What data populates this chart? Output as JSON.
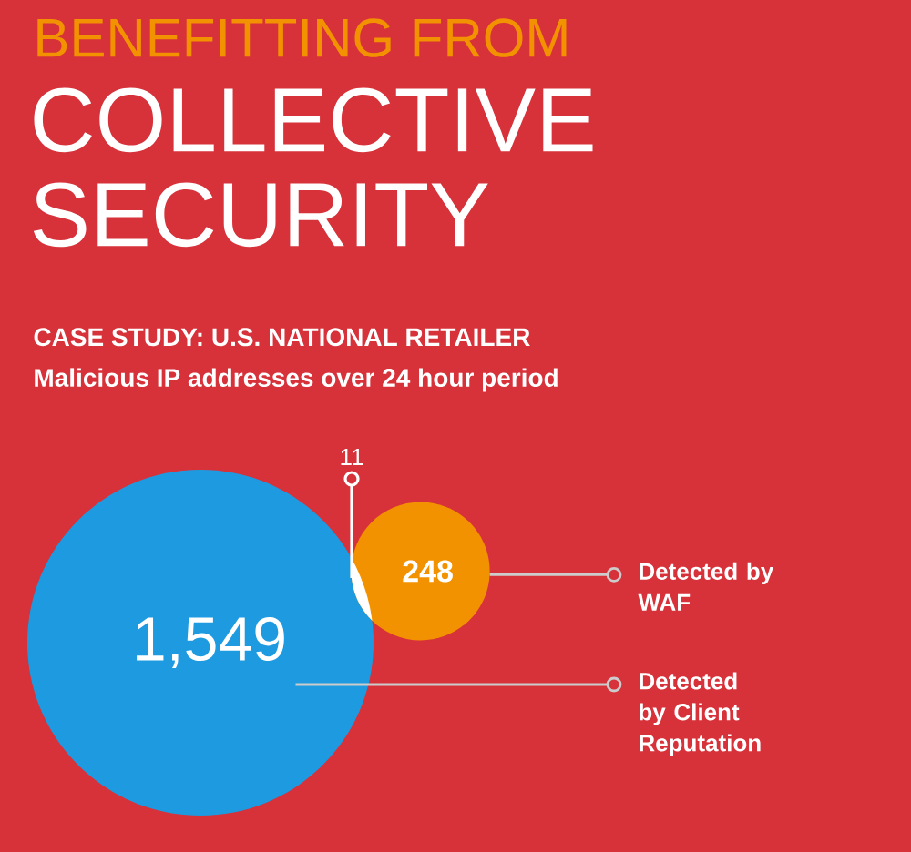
{
  "chart_data": {
    "type": "other",
    "title": "BENEFITTING FROM",
    "subtitle": "COLLECTIVE SECURITY",
    "annotations": [
      "CASE STUDY: U.S. NATIONAL RETAILER",
      "Malicious IP addresses over 24 hour period"
    ],
    "categories": [
      "Detected by Client Reputation",
      "Detected by WAF",
      null
    ],
    "values": [
      1549,
      248,
      11
    ],
    "value_labels": [
      "1,549",
      "248",
      "11"
    ],
    "colors": [
      "#1e9be0",
      "#f39200",
      "#ffffff"
    ]
  }
}
